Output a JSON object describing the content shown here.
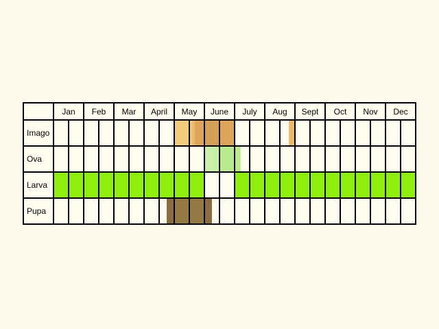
{
  "months": [
    "Jan",
    "Feb",
    "Mar",
    "April",
    "May",
    "June",
    "July",
    "Aug",
    "Sept",
    "Oct",
    "Nov",
    "Dec"
  ],
  "stages": [
    {
      "label": "Imago",
      "segments": [
        {
          "start": 8.0,
          "end": 9.15,
          "color": "#f2cd7a"
        },
        {
          "start": 9.15,
          "end": 9.35,
          "color": "#ebb866"
        },
        {
          "start": 9.35,
          "end": 10.0,
          "color": "#dea55a"
        },
        {
          "start": 10.0,
          "end": 11.0,
          "color": "#d49f56"
        },
        {
          "start": 11.0,
          "end": 12.0,
          "color": "#dea55a"
        },
        {
          "start": 15.6,
          "end": 16.0,
          "color": "#ebb866"
        }
      ]
    },
    {
      "label": "Ova",
      "segments": [
        {
          "start": 10.0,
          "end": 11.0,
          "color": "#c8f0a6"
        },
        {
          "start": 11.0,
          "end": 12.4,
          "color": "#b9e98d"
        }
      ]
    },
    {
      "label": "Larva",
      "segments": [
        {
          "start": 0.0,
          "end": 10.0,
          "color": "#8eef0b"
        },
        {
          "start": 12.0,
          "end": 24.0,
          "color": "#8eef0b"
        }
      ]
    },
    {
      "label": "Pupa",
      "segments": [
        {
          "start": 7.5,
          "end": 8.0,
          "color": "#8a6e42"
        },
        {
          "start": 8.0,
          "end": 10.0,
          "color": "#957a44"
        },
        {
          "start": 10.0,
          "end": 10.5,
          "color": "#8a6e42"
        }
      ]
    }
  ],
  "colors": {
    "background": "#fdfbeb",
    "cell": "#fffdf0",
    "grid": "#000000",
    "text": "#000000"
  }
}
